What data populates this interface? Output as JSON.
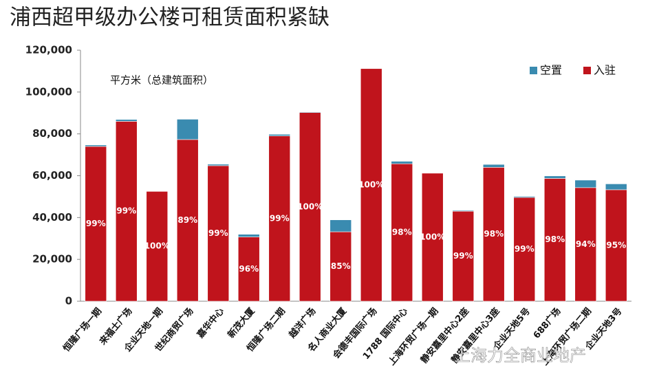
{
  "chart_data": {
    "type": "stacked_bar",
    "title": "浦西超甲级办公楼可租赁面积紧缺",
    "y_label": "平方米（总建筑面积）",
    "categories": [
      "恒隆广场一期",
      "来福士广场",
      "企业天地一期",
      "世纪商贸广场",
      "嘉华中心",
      "新茂大厦",
      "恒隆广场二期",
      "越洋广场",
      "名人商业大厦",
      "会德丰国际广场",
      "1788 国际中心",
      "上海环贸广场一期",
      "静安嘉里中心2座",
      "静安嘉里中心3座",
      "企业天地5号",
      "688广场",
      "上海环贸广场二期",
      "企业天地3号"
    ],
    "series": [
      {
        "name": "入驻",
        "color": "#c0141c",
        "values": [
          74000,
          86000,
          52500,
          77300,
          64800,
          30700,
          79000,
          90200,
          33200,
          111200,
          65700,
          61200,
          43000,
          64000,
          49600,
          58700,
          54300,
          53300
        ]
      },
      {
        "name": "空置",
        "color": "#3a8bb0",
        "values": [
          700,
          900,
          0,
          9700,
          700,
          1300,
          800,
          300,
          5700,
          0,
          1200,
          0,
          400,
          1400,
          500,
          1200,
          3600,
          2800
        ]
      }
    ],
    "occupancy_labels": [
      "99%",
      "99%",
      "100%",
      "89%",
      "99%",
      "96%",
      "99%",
      "100%",
      "85%",
      "100%",
      "98%",
      "100%",
      "99%",
      "98%",
      "99%",
      "98%",
      "94%",
      "95%"
    ],
    "ylim": [
      0,
      120000
    ],
    "yticks": [
      0,
      {
        "value": 20000,
        "label": "20,000"
      },
      {
        "value": 40000,
        "label": "40,000"
      },
      {
        "value": 60000,
        "label": "60,000"
      },
      {
        "value": 80000,
        "label": "80,000"
      },
      {
        "value": 100000,
        "label": "100,000"
      },
      {
        "value": 120000,
        "label": "120,000"
      }
    ],
    "legend_position": "upper right",
    "watermark": "上海力全商业地产"
  }
}
